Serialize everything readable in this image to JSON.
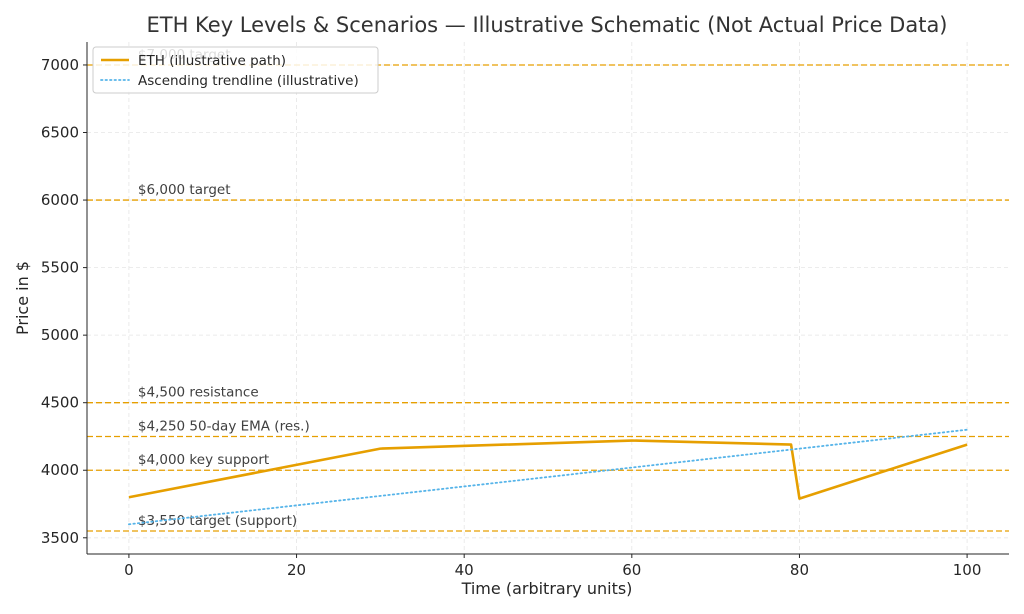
{
  "chart_data": {
    "type": "line",
    "title": "ETH Key Levels & Scenarios — Illustrative Schematic (Not Actual Price Data)",
    "xlabel": "Time (arbitrary units)",
    "ylabel": "Price in $",
    "xlim": [
      -5,
      105
    ],
    "ylim": [
      3380,
      7170
    ],
    "xticks": [
      0,
      20,
      40,
      60,
      80,
      100
    ],
    "yticks": [
      3500,
      4000,
      4500,
      5000,
      5500,
      6000,
      6500,
      7000
    ],
    "grid": true,
    "legend_position": "top-left",
    "series": [
      {
        "name": "ETH (illustrative path)",
        "style": "solid",
        "color": "#E69F00",
        "x": [
          0,
          30,
          60,
          79,
          80,
          100
        ],
        "y": [
          3800,
          4160,
          4220,
          4190,
          3790,
          4190
        ]
      },
      {
        "name": "Ascending trendline (illustrative)",
        "style": "dotted",
        "color": "#56B4E9",
        "x": [
          0,
          100
        ],
        "y": [
          3600,
          4300
        ]
      }
    ],
    "levels": [
      {
        "value": 7000,
        "label": "$7,000 target"
      },
      {
        "value": 6000,
        "label": "$6,000 target"
      },
      {
        "value": 4500,
        "label": "$4,500 resistance"
      },
      {
        "value": 4250,
        "label": "$4,250 50-day EMA (res.)"
      },
      {
        "value": 4000,
        "label": "$4,000 key support"
      },
      {
        "value": 3550,
        "label": "$3,550 target (support)"
      }
    ],
    "level_color": "#E69F00"
  }
}
